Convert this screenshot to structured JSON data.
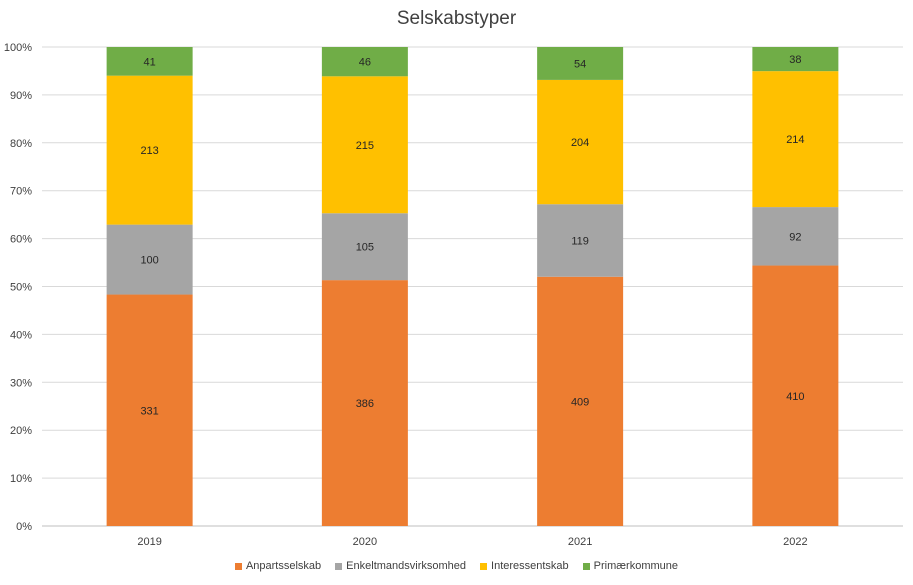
{
  "chart_data": {
    "type": "bar",
    "stacked": "percent",
    "title": "Selskabstyper",
    "xlabel": "",
    "ylabel": "",
    "categories": [
      "2019",
      "2020",
      "2021",
      "2022"
    ],
    "series": [
      {
        "name": "Anpartsselskab",
        "color": "#ED7D31",
        "values": [
          331,
          386,
          409,
          410
        ]
      },
      {
        "name": "Enkeltmandsvirksomhed",
        "color": "#A5A5A5",
        "values": [
          100,
          105,
          119,
          92
        ]
      },
      {
        "name": "Interessentskab",
        "color": "#FFC000",
        "values": [
          213,
          215,
          204,
          214
        ]
      },
      {
        "name": "Primærkommune",
        "color": "#70AD47",
        "values": [
          41,
          46,
          54,
          38
        ]
      }
    ],
    "yticks": [
      "0%",
      "10%",
      "20%",
      "30%",
      "40%",
      "50%",
      "60%",
      "70%",
      "80%",
      "90%",
      "100%"
    ],
    "ylim": [
      0,
      100
    ],
    "grid": true,
    "legend_position": "bottom"
  }
}
